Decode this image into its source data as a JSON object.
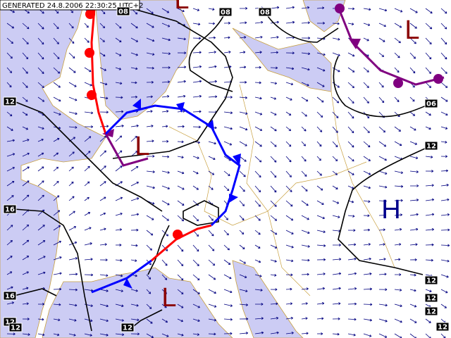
{
  "header": {
    "generated": "GENERATED 24.8.2006 22:30:25 UTC+2"
  },
  "pressure_centers": [
    {
      "label": "L"
    },
    {
      "label": "L"
    },
    {
      "label": "L"
    },
    {
      "label": "H"
    },
    {
      "label": "L"
    }
  ],
  "isobar_labels": [
    "08",
    "08",
    "08",
    "12",
    "06",
    "12",
    "16",
    "16",
    "12",
    "12",
    "12",
    "12",
    "12",
    "12",
    "12"
  ]
}
